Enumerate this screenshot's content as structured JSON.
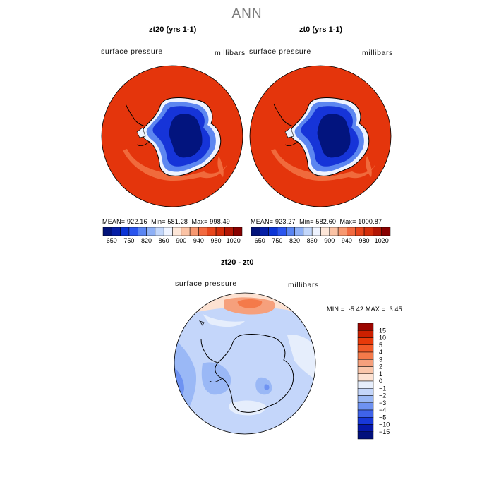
{
  "figure": {
    "title": "ANN"
  },
  "colors": {
    "ocean_high": "#e4350c",
    "ocean_edge": "#f06a3c",
    "ice_dark": "#02147e",
    "ice_mid": "#1634d8",
    "ice_light": "#5c86f0",
    "coast": "#000000"
  },
  "panels": [
    {
      "title": "zt20 (yrs 1-1)",
      "variable": "surface pressure",
      "units": "millibars",
      "stats": {
        "mean_label": "MEAN=",
        "mean": "922.16",
        "min_label": "Min=",
        "min": "581.28",
        "max_label": "Max=",
        "max": "998.49"
      }
    },
    {
      "title": "zt0 (yrs 1-1)",
      "variable": "surface pressure",
      "units": "millibars",
      "stats": {
        "mean_label": "MEAN=",
        "mean": "923.27",
        "min_label": "Min=",
        "min": "582.60",
        "max_label": "Max=",
        "max": "1000.87"
      }
    },
    {
      "title": "zt20 - zt0",
      "variable": "surface pressure",
      "units": "millibars",
      "stats": {
        "min_label": "MIN =",
        "min": "-5.42",
        "max_label": "MAX =",
        "max": "3.45"
      }
    }
  ],
  "colorbar_abs": {
    "labels": [
      "650",
      "750",
      "820",
      "860",
      "900",
      "940",
      "980",
      "1020"
    ],
    "colors": [
      "#02137a",
      "#061fa6",
      "#0c35d6",
      "#2a55ee",
      "#5a85f2",
      "#8eb0f6",
      "#c2d6fa",
      "#eef3ff",
      "#fde6d8",
      "#fbc3a5",
      "#f79870",
      "#f26a40",
      "#e8461c",
      "#d42d0a",
      "#b31604",
      "#880000"
    ]
  },
  "colorbar_diff": {
    "labels": [
      "15",
      "10",
      "5",
      "4",
      "3",
      "2",
      "1",
      "0",
      "-1",
      "-2",
      "-3",
      "-4",
      "-5",
      "-10",
      "-15"
    ],
    "colors": [
      "#9c0500",
      "#cc2000",
      "#e83a0a",
      "#f25a28",
      "#f47a4a",
      "#f6a07c",
      "#fac6aa",
      "#fde2d2",
      "#e6eefc",
      "#c4d6fa",
      "#9ab8f6",
      "#6e92f2",
      "#3f63ea",
      "#1838d8",
      "#0618a8",
      "#02107c"
    ]
  }
}
